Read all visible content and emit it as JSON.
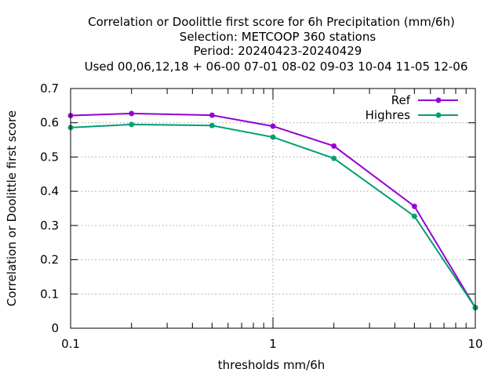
{
  "chart_data": {
    "type": "line",
    "title_lines": [
      "Correlation or Doolittle first score  for 6h Precipitation (mm/6h)",
      "Selection: METCOOP    360 stations",
      "Period: 20240423-20240429",
      "Used  00,06,12,18 + 06-00 07-01 08-02 09-03 10-04 11-05 12-06"
    ],
    "xlabel": "thresholds mm/6h",
    "ylabel": "Correlation or Doolittle first score",
    "x_scale": "log",
    "xlim": [
      0.1,
      10
    ],
    "ylim": [
      0,
      0.7
    ],
    "x_ticks": [
      "0.1",
      "1",
      "10"
    ],
    "y_ticks": [
      "0",
      "0.1",
      "0.2",
      "0.3",
      "0.4",
      "0.5",
      "0.6",
      "0.7"
    ],
    "grid": true,
    "legend_position": "top-right",
    "x": [
      0.1,
      0.2,
      0.5,
      1,
      2,
      5,
      10
    ],
    "series": [
      {
        "name": "Ref",
        "color": "#9400d3",
        "values": [
          0.621,
          0.627,
          0.622,
          0.59,
          0.532,
          0.356,
          0.06
        ]
      },
      {
        "name": "Highres",
        "color": "#009e73",
        "values": [
          0.586,
          0.595,
          0.592,
          0.558,
          0.496,
          0.327,
          0.06
        ]
      }
    ]
  }
}
